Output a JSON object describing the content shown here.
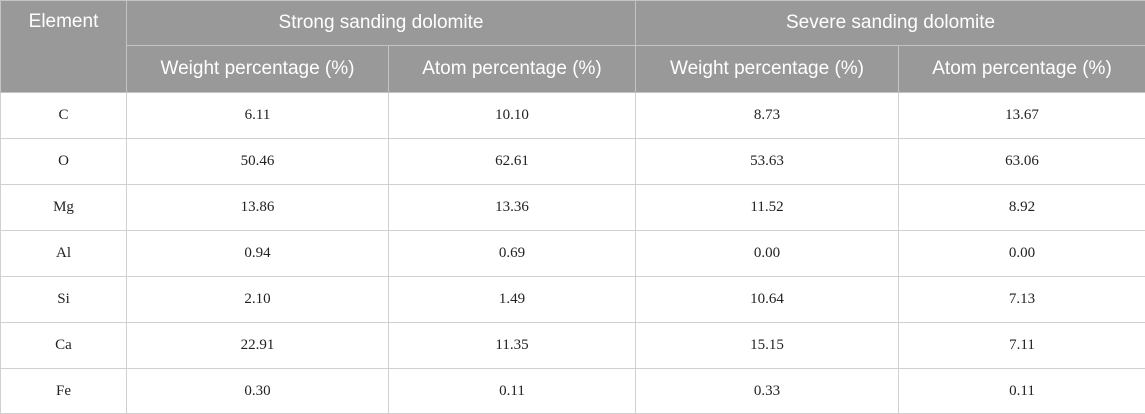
{
  "table": {
    "element_header": "Element",
    "groups": [
      {
        "label": "Strong sanding dolomite"
      },
      {
        "label": "Severe sanding dolomite"
      }
    ],
    "subheaders": [
      "Weight percentage (%)",
      "Atom percentage (%)",
      "Weight percentage (%)",
      "Atom percentage (%)"
    ],
    "rows": [
      {
        "element": "C",
        "values": [
          "6.11",
          "10.10",
          "8.73",
          "13.67"
        ]
      },
      {
        "element": "O",
        "values": [
          "50.46",
          "62.61",
          "53.63",
          "63.06"
        ]
      },
      {
        "element": "Mg",
        "values": [
          "13.86",
          "13.36",
          "11.52",
          "8.92"
        ]
      },
      {
        "element": "Al",
        "values": [
          "0.94",
          "0.69",
          "0.00",
          "0.00"
        ]
      },
      {
        "element": "Si",
        "values": [
          "2.10",
          "1.49",
          "10.64",
          "7.13"
        ]
      },
      {
        "element": "Ca",
        "values": [
          "22.91",
          "11.35",
          "15.15",
          "7.11"
        ]
      },
      {
        "element": "Fe",
        "values": [
          "0.30",
          "0.11",
          "0.33",
          "0.11"
        ]
      }
    ]
  }
}
